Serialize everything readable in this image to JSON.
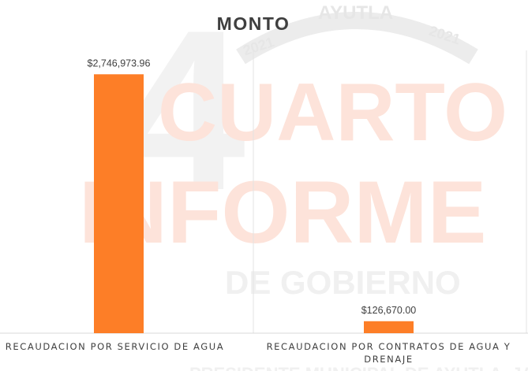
{
  "watermark": {
    "number": "4",
    "line1": "CUARTO",
    "line2": "INFORME",
    "line3": "DE GOBIERNO",
    "seal_text": "AYUTLA",
    "seal_year_left": "2021",
    "seal_year_right": "2021",
    "footer": "PRESIDENTE MUNICIPAL DE AYUTLA, JAL"
  },
  "colors": {
    "bar": "#fd7e27",
    "watermark_red": "#fde3da",
    "watermark_gray": "#f1f1f1",
    "axis": "#d9d9d9",
    "text": "#404040"
  },
  "chart_data": {
    "type": "bar",
    "title": "MONTO",
    "categories": [
      [
        "RECAUDACION POR SERVICIO DE AGUA"
      ],
      [
        "RECAUDACION POR CONTRATOS DE AGUA Y",
        "DRENAJE"
      ]
    ],
    "values": [
      2746973.96,
      126670.0
    ],
    "data_labels": [
      "$2,746,973.96",
      "$126,670.00"
    ],
    "ylim": [
      0,
      3000000
    ],
    "grid": false,
    "legend": "none"
  }
}
